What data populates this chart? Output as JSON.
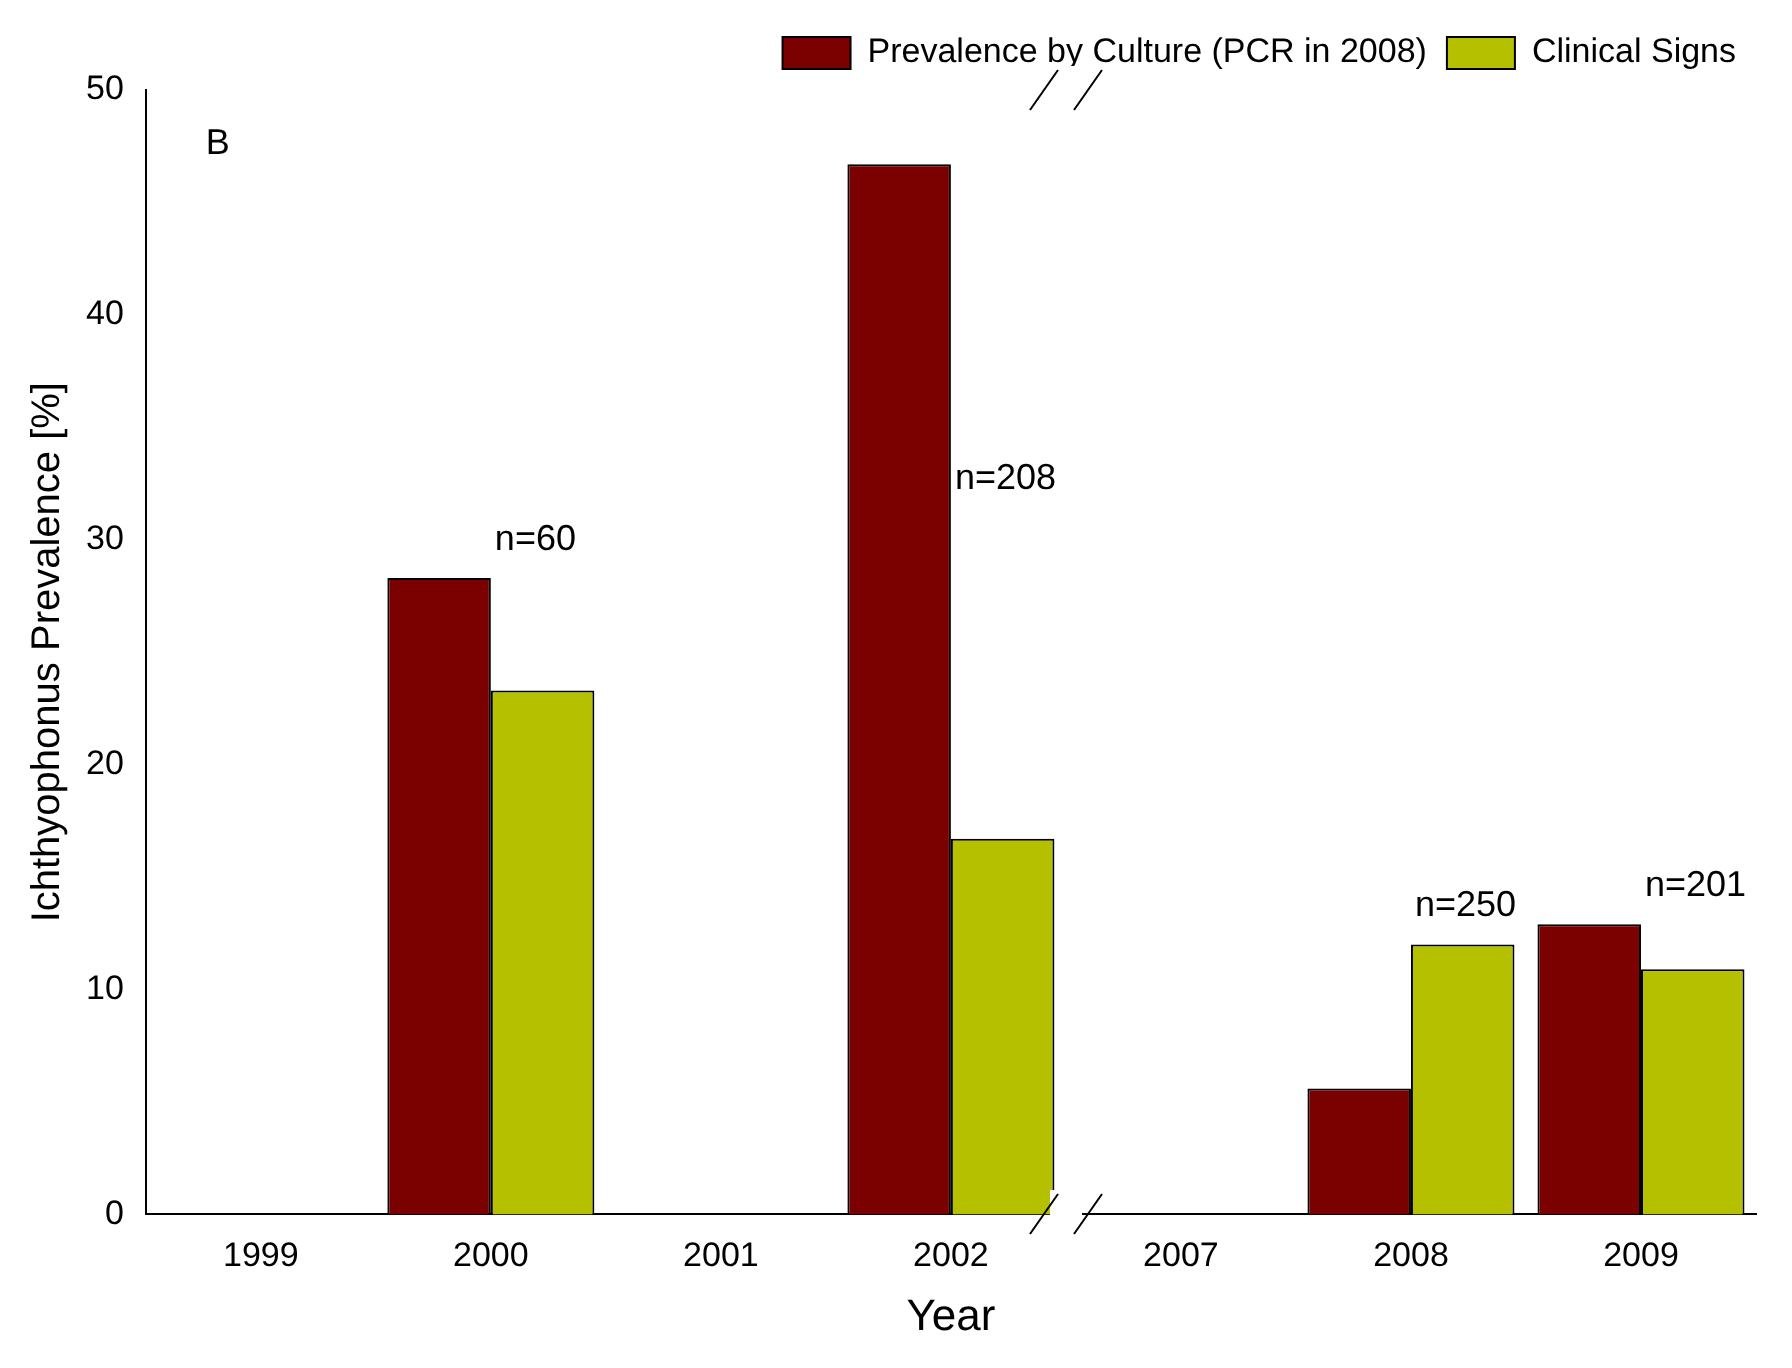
{
  "chart_data": {
    "type": "bar",
    "xlabel": "Year",
    "ylabel": "Ichthyophonus Prevalence [%]",
    "categories": [
      "1999",
      "2000",
      "2001",
      "2002",
      "2007",
      "2008",
      "2009"
    ],
    "series": [
      {
        "name": "Prevalence by Culture (PCR in 2008)",
        "color": "#7b0000",
        "values": [
          null,
          28.3,
          null,
          46.7,
          null,
          5.6,
          12.9
        ]
      },
      {
        "name": "Clinical Signs",
        "color": "#b5c000",
        "values": [
          null,
          23.3,
          null,
          16.7,
          null,
          12.0,
          10.9
        ]
      }
    ],
    "ylim": [
      0,
      50
    ],
    "yticks": [
      0,
      10,
      20,
      30,
      40,
      50
    ],
    "grid": false,
    "legend": "top right",
    "annotations": [
      "B",
      {
        "text": "n=60",
        "x": "2000",
        "y": 28.3
      },
      {
        "text": "n=208",
        "x": "2002",
        "y": 31
      },
      {
        "text": "n=250",
        "x": "2008",
        "y": 12.0
      },
      {
        "text": "n=201",
        "x": "2009",
        "y": 12.9
      }
    ]
  }
}
